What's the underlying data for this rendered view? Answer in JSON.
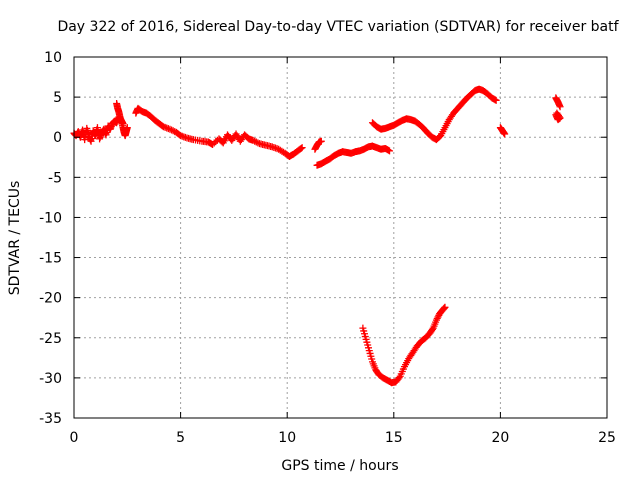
{
  "chart_data": {
    "type": "scatter",
    "title": "Day 322 of 2016, Sidereal Day-to-day VTEC variation (SDTVAR) for receiver batf",
    "xlabel": "GPS time / hours",
    "ylabel": "SDTVAR / TECUs",
    "xlim": [
      0,
      25
    ],
    "ylim": [
      -35,
      10
    ],
    "xticks": [
      0,
      5,
      10,
      15,
      20,
      25
    ],
    "yticks": [
      10,
      5,
      0,
      -5,
      -10,
      -15,
      -20,
      -25,
      -30,
      -35
    ],
    "grid": true,
    "marker": "+",
    "series_color": "#ff0000",
    "series": [
      {
        "segments": [
          [
            [
              0.0,
              0.5
            ],
            [
              0.1,
              0.2
            ],
            [
              0.2,
              0.7
            ],
            [
              0.3,
              0.0
            ],
            [
              0.4,
              0.9
            ],
            [
              0.5,
              -0.3
            ],
            [
              0.6,
              1.1
            ],
            [
              0.7,
              0.1
            ],
            [
              0.8,
              -0.5
            ],
            [
              0.9,
              0.8
            ],
            [
              1.0,
              0.2
            ],
            [
              1.1,
              1.2
            ],
            [
              1.2,
              -0.2
            ],
            [
              1.3,
              0.5
            ],
            [
              1.4,
              1.0
            ],
            [
              1.5,
              0.3
            ],
            [
              1.6,
              1.4
            ],
            [
              1.7,
              1.0
            ],
            [
              1.8,
              1.7
            ],
            [
              1.9,
              2.0
            ],
            [
              2.0,
              1.8
            ],
            [
              2.1,
              2.5
            ],
            [
              2.2,
              2.2
            ],
            [
              2.3,
              1.7
            ]
          ],
          [
            [
              2.0,
              4.2
            ],
            [
              2.05,
              3.6
            ],
            [
              2.1,
              3.2
            ],
            [
              2.15,
              2.6
            ],
            [
              2.2,
              2.1
            ],
            [
              2.3,
              1.2
            ],
            [
              2.35,
              0.6
            ],
            [
              2.4,
              0.2
            ],
            [
              2.45,
              0.7
            ],
            [
              2.5,
              1.2
            ]
          ],
          [
            [
              2.9,
              3.0
            ],
            [
              3.0,
              3.6
            ],
            [
              3.2,
              3.2
            ],
            [
              3.4,
              3.0
            ],
            [
              3.6,
              2.6
            ],
            [
              3.8,
              2.1
            ],
            [
              4.0,
              1.7
            ],
            [
              4.2,
              1.3
            ],
            [
              4.5,
              1.0
            ],
            [
              4.8,
              0.6
            ],
            [
              5.0,
              0.2
            ],
            [
              5.3,
              -0.1
            ],
            [
              5.6,
              -0.3
            ],
            [
              6.0,
              -0.5
            ],
            [
              6.3,
              -0.6
            ],
            [
              6.5,
              -0.9
            ],
            [
              6.8,
              -0.2
            ],
            [
              7.0,
              -0.7
            ],
            [
              7.2,
              0.3
            ],
            [
              7.4,
              -0.4
            ],
            [
              7.6,
              0.4
            ],
            [
              7.8,
              -0.5
            ],
            [
              8.0,
              0.3
            ],
            [
              8.2,
              -0.2
            ],
            [
              8.4,
              -0.4
            ],
            [
              8.7,
              -0.8
            ],
            [
              9.0,
              -1.0
            ],
            [
              9.3,
              -1.2
            ],
            [
              9.6,
              -1.5
            ],
            [
              9.9,
              -2.0
            ],
            [
              10.1,
              -2.4
            ],
            [
              10.3,
              -2.1
            ],
            [
              10.5,
              -1.7
            ],
            [
              10.7,
              -1.3
            ]
          ],
          [
            [
              11.3,
              -1.5
            ],
            [
              11.4,
              -1.0
            ],
            [
              11.5,
              -0.6
            ],
            [
              11.6,
              -0.5
            ]
          ],
          [
            [
              11.4,
              -3.5
            ],
            [
              11.6,
              -3.3
            ],
            [
              11.8,
              -3.0
            ],
            [
              12.0,
              -2.7
            ],
            [
              12.2,
              -2.3
            ],
            [
              12.4,
              -2.0
            ],
            [
              12.6,
              -1.8
            ],
            [
              12.8,
              -1.9
            ],
            [
              13.0,
              -2.0
            ],
            [
              13.2,
              -1.8
            ],
            [
              13.4,
              -1.7
            ],
            [
              13.6,
              -1.5
            ],
            [
              13.8,
              -1.2
            ],
            [
              14.0,
              -1.1
            ],
            [
              14.2,
              -1.3
            ],
            [
              14.4,
              -1.5
            ],
            [
              14.6,
              -1.4
            ],
            [
              14.8,
              -1.7
            ]
          ],
          [
            [
              14.0,
              1.8
            ],
            [
              14.2,
              1.3
            ],
            [
              14.4,
              1.0
            ],
            [
              14.6,
              1.1
            ],
            [
              14.8,
              1.3
            ],
            [
              15.0,
              1.5
            ],
            [
              15.2,
              1.8
            ],
            [
              15.4,
              2.1
            ],
            [
              15.6,
              2.3
            ],
            [
              15.8,
              2.2
            ],
            [
              16.0,
              2.0
            ],
            [
              16.2,
              1.6
            ],
            [
              16.4,
              1.1
            ],
            [
              16.6,
              0.5
            ],
            [
              16.8,
              0.0
            ],
            [
              17.0,
              -0.3
            ],
            [
              17.2,
              0.2
            ],
            [
              17.4,
              1.2
            ],
            [
              17.6,
              2.2
            ],
            [
              17.8,
              3.0
            ],
            [
              18.0,
              3.6
            ],
            [
              18.2,
              4.2
            ],
            [
              18.4,
              4.8
            ],
            [
              18.6,
              5.3
            ],
            [
              18.8,
              5.8
            ],
            [
              19.0,
              6.0
            ],
            [
              19.2,
              5.8
            ],
            [
              19.4,
              5.4
            ],
            [
              19.6,
              4.9
            ],
            [
              19.8,
              4.6
            ]
          ],
          [
            [
              20.0,
              1.2
            ],
            [
              20.1,
              0.8
            ],
            [
              20.2,
              0.4
            ]
          ],
          [
            [
              22.6,
              4.9
            ],
            [
              22.7,
              4.4
            ],
            [
              22.8,
              3.8
            ]
          ],
          [
            [
              22.6,
              2.8
            ],
            [
              22.7,
              2.2
            ],
            [
              22.8,
              2.4
            ],
            [
              22.65,
              3.0
            ]
          ],
          [
            [
              13.55,
              -23.8
            ],
            [
              13.7,
              -25.2
            ],
            [
              13.85,
              -26.6
            ],
            [
              14.0,
              -28.0
            ],
            [
              14.15,
              -29.0
            ],
            [
              14.3,
              -29.6
            ],
            [
              14.5,
              -30.0
            ],
            [
              14.7,
              -30.3
            ],
            [
              14.9,
              -30.6
            ],
            [
              15.1,
              -30.5
            ],
            [
              15.3,
              -29.8
            ],
            [
              15.5,
              -28.6
            ],
            [
              15.7,
              -27.6
            ],
            [
              15.9,
              -26.8
            ],
            [
              16.1,
              -26.0
            ],
            [
              16.3,
              -25.4
            ],
            [
              16.5,
              -25.0
            ],
            [
              16.7,
              -24.4
            ],
            [
              16.85,
              -23.8
            ],
            [
              17.0,
              -22.8
            ],
            [
              17.15,
              -22.0
            ],
            [
              17.3,
              -21.5
            ],
            [
              17.4,
              -21.2
            ]
          ]
        ]
      }
    ]
  }
}
